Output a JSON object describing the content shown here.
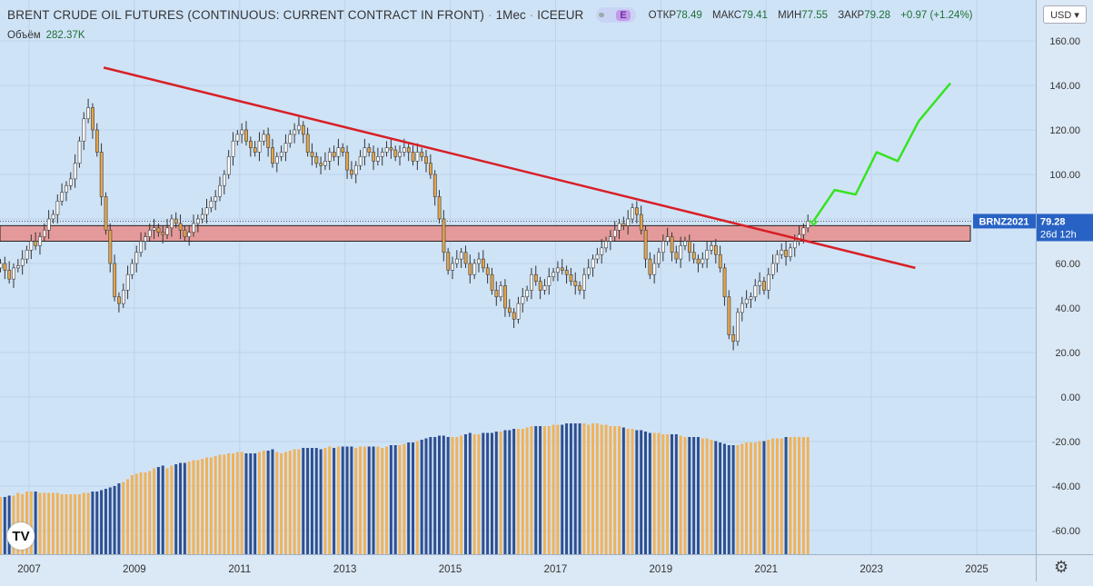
{
  "header": {
    "title": "BRENT CRUDE OIL FUTURES (CONTINUOUS: CURRENT CONTRACT IN FRONT)",
    "interval": "1Мес",
    "exchange": "ICEEUR",
    "badge": "E",
    "open_label": "ОТКР",
    "open": "78.49",
    "high_label": "МАКС",
    "high": "79.41",
    "low_label": "МИН",
    "low": "77.55",
    "close_label": "ЗАКР",
    "close": "79.28",
    "change": "+0.97 (+1.24%)",
    "volume_label": "Объём",
    "volume": "282.37K"
  },
  "currency": "USD ▾",
  "logo_text": "TV",
  "price_label": {
    "symbol": "BRNZ2021",
    "price": "79.28",
    "countdown": "26d 12h"
  },
  "chart_data": {
    "type": "candlestick",
    "y_ticks": [
      160,
      140,
      120,
      100,
      80,
      60,
      40,
      20,
      0,
      -20,
      -40,
      -60
    ],
    "x_ticks": [
      "2007",
      "2009",
      "2011",
      "2013",
      "2015",
      "2017",
      "2019",
      "2021",
      "2023",
      "2025"
    ],
    "ylim": [
      -70,
      165
    ],
    "resistance_zone": [
      70,
      77
    ],
    "trendline": {
      "from": [
        "2008-06",
        148
      ],
      "to": [
        "2023-11",
        58
      ]
    },
    "forecast_path": [
      [
        2021.9,
        79
      ],
      [
        2022.3,
        93
      ],
      [
        2022.7,
        91
      ],
      [
        2023.1,
        110
      ],
      [
        2023.5,
        106
      ],
      [
        2023.9,
        124
      ],
      [
        2024.5,
        141
      ]
    ],
    "closes": [
      60,
      57,
      53,
      58,
      59,
      62,
      66,
      70,
      68,
      72,
      75,
      80,
      82,
      88,
      92,
      95,
      98,
      105,
      115,
      125,
      130,
      120,
      110,
      90,
      75,
      60,
      45,
      42,
      48,
      55,
      60,
      65,
      70,
      72,
      75,
      76,
      74,
      73,
      76,
      80,
      78,
      75,
      72,
      74,
      78,
      80,
      82,
      85,
      88,
      90,
      95,
      100,
      108,
      115,
      118,
      120,
      115,
      112,
      110,
      115,
      118,
      112,
      105,
      108,
      110,
      114,
      118,
      120,
      122,
      118,
      110,
      108,
      105,
      104,
      106,
      110,
      108,
      112,
      110,
      102,
      100,
      104,
      108,
      112,
      110,
      106,
      108,
      110,
      112,
      111,
      108,
      110,
      112,
      110,
      106,
      110,
      108,
      105,
      100,
      90,
      80,
      65,
      57,
      60,
      62,
      65,
      60,
      55,
      60,
      62,
      58,
      55,
      48,
      45,
      50,
      40,
      38,
      35,
      42,
      45,
      48,
      55,
      52,
      48,
      50,
      54,
      56,
      58,
      57,
      55,
      52,
      50,
      48,
      55,
      58,
      62,
      64,
      67,
      70,
      72,
      75,
      78,
      77,
      80,
      85,
      82,
      75,
      62,
      55,
      60,
      65,
      70,
      72,
      65,
      62,
      68,
      70,
      65,
      62,
      60,
      62,
      66,
      68,
      64,
      58,
      45,
      28,
      25,
      38,
      42,
      44,
      45,
      50,
      52,
      48,
      55,
      60,
      64,
      66,
      63,
      67,
      70,
      73,
      76,
      79
    ]
  },
  "volume_data": [
    42,
    42,
    43,
    43,
    45,
    44,
    46,
    46,
    46,
    45,
    45,
    45,
    45,
    45,
    44,
    44,
    44,
    44,
    44,
    45,
    45,
    46,
    46,
    47,
    48,
    49,
    50,
    52,
    53,
    55,
    58,
    59,
    60,
    60,
    61,
    63,
    64,
    65,
    63,
    65,
    66,
    67,
    67,
    68,
    69,
    69,
    70,
    71,
    71,
    72,
    73,
    73,
    74,
    74,
    75,
    75,
    74,
    74,
    74,
    75,
    76,
    76,
    77,
    75,
    74,
    75,
    76,
    77,
    77,
    78,
    78,
    78,
    78,
    77,
    78,
    79,
    78,
    79,
    79,
    79,
    79,
    78,
    79,
    79,
    79,
    79,
    79,
    78,
    79,
    80,
    80,
    80,
    81,
    82,
    82,
    83,
    84,
    85,
    86,
    86,
    87,
    87,
    86,
    86,
    86,
    87,
    88,
    89,
    88,
    88,
    89,
    89,
    89,
    90,
    90,
    91,
    91,
    92,
    92,
    92,
    93,
    94,
    94,
    94,
    94,
    94,
    95,
    95,
    95,
    96,
    96,
    96,
    96,
    96,
    95,
    96,
    96,
    95,
    95,
    94,
    94,
    94,
    93,
    92,
    92,
    91,
    91,
    90,
    89,
    89,
    89,
    88,
    88,
    88,
    88,
    87,
    86,
    86,
    86,
    86,
    85,
    85,
    84,
    83,
    82,
    81,
    80,
    80,
    80,
    81,
    82,
    82,
    82,
    83,
    83,
    84,
    85,
    85,
    85,
    86,
    86,
    86,
    86,
    86,
    86
  ]
}
